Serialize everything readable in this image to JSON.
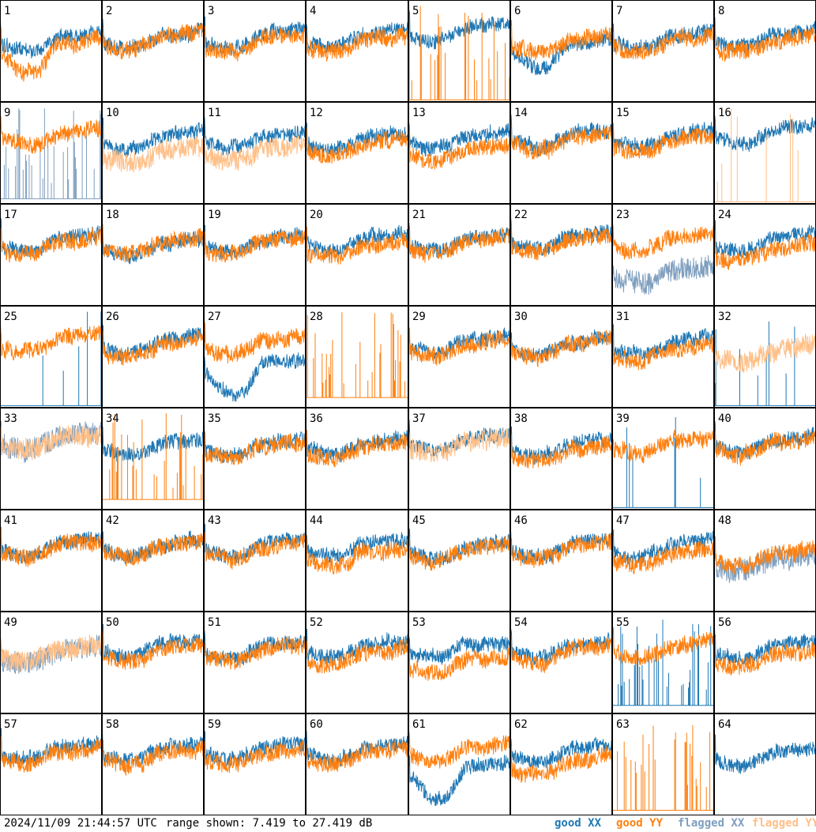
{
  "chart_data": {
    "type": "line",
    "layout": "8x8 small multiples",
    "panel_count": 64,
    "panel_labels": [
      "1",
      "2",
      "3",
      "4",
      "5",
      "6",
      "7",
      "8",
      "9",
      "10",
      "11",
      "12",
      "13",
      "14",
      "15",
      "16",
      "17",
      "18",
      "19",
      "20",
      "21",
      "22",
      "23",
      "24",
      "25",
      "26",
      "27",
      "28",
      "29",
      "30",
      "31",
      "32",
      "33",
      "34",
      "35",
      "36",
      "37",
      "38",
      "39",
      "40",
      "41",
      "42",
      "43",
      "44",
      "45",
      "46",
      "47",
      "48",
      "49",
      "50",
      "51",
      "52",
      "53",
      "54",
      "55",
      "56",
      "57",
      "58",
      "59",
      "60",
      "61",
      "62",
      "63",
      "64"
    ],
    "ylim": [
      7.419,
      27.419
    ],
    "yunit": "dB",
    "series": [
      {
        "name": "good XX",
        "color": "#1f77b4"
      },
      {
        "name": "good YY",
        "color": "#ff7f0e"
      },
      {
        "name": "flagged XX",
        "color": "#7f9fbf"
      },
      {
        "name": "flagged YY",
        "color": "#ffbf87"
      }
    ],
    "panels": [
      {
        "id": 1,
        "xx": "good",
        "yy": "good",
        "xx_level": 0.62,
        "yy_level": 0.55,
        "yy_dip": 0.75
      },
      {
        "id": 2,
        "xx": "good",
        "yy": "good",
        "xx_level": 0.65,
        "yy_level": 0.62
      },
      {
        "id": 3,
        "xx": "good",
        "yy": "good",
        "xx_level": 0.65,
        "yy_level": 0.6
      },
      {
        "id": 4,
        "xx": "good",
        "yy": "good",
        "xx_level": 0.66,
        "yy_level": 0.6
      },
      {
        "id": 5,
        "xx": "good",
        "yy": "spiky",
        "xx_level": 0.72,
        "yy_level": 0.02
      },
      {
        "id": 6,
        "xx": "good",
        "yy": "good",
        "xx_level": 0.55,
        "yy_level": 0.6,
        "xx_dip": 0.6
      },
      {
        "id": 7,
        "xx": "good",
        "yy": "good",
        "xx_level": 0.64,
        "yy_level": 0.6
      },
      {
        "id": 8,
        "xx": "good",
        "yy": "good",
        "xx_level": 0.65,
        "yy_level": 0.6
      },
      {
        "id": 9,
        "xx": "flagged-spiky",
        "yy": "good",
        "xx_level": 0.05,
        "yy_level": 0.7
      },
      {
        "id": 10,
        "xx": "good",
        "yy": "flagged",
        "xx_level": 0.66,
        "yy_level": 0.5
      },
      {
        "id": 11,
        "xx": "good",
        "yy": "flagged",
        "xx_level": 0.66,
        "yy_level": 0.52
      },
      {
        "id": 12,
        "xx": "good",
        "yy": "good",
        "xx_level": 0.64,
        "yy_level": 0.58
      },
      {
        "id": 13,
        "xx": "good",
        "yy": "good",
        "xx_level": 0.66,
        "yy_level": 0.52
      },
      {
        "id": 14,
        "xx": "good",
        "yy": "good",
        "xx_level": 0.68,
        "yy_level": 0.64
      },
      {
        "id": 15,
        "xx": "good",
        "yy": "good",
        "xx_level": 0.68,
        "yy_level": 0.62
      },
      {
        "id": 16,
        "xx": "good",
        "yy": "flagged-spiky",
        "xx_level": 0.72,
        "yy_level": 0.02
      },
      {
        "id": 17,
        "xx": "good",
        "yy": "good",
        "xx_level": 0.66,
        "yy_level": 0.62
      },
      {
        "id": 18,
        "xx": "good",
        "yy": "good",
        "xx_level": 0.6,
        "yy_level": 0.62
      },
      {
        "id": 19,
        "xx": "good",
        "yy": "good",
        "xx_level": 0.64,
        "yy_level": 0.62
      },
      {
        "id": 20,
        "xx": "good",
        "yy": "good",
        "xx_level": 0.66,
        "yy_level": 0.58
      },
      {
        "id": 21,
        "xx": "good",
        "yy": "good",
        "xx_level": 0.66,
        "yy_level": 0.62
      },
      {
        "id": 22,
        "xx": "good",
        "yy": "good",
        "xx_level": 0.68,
        "yy_level": 0.64
      },
      {
        "id": 23,
        "xx": "flagged",
        "yy": "good",
        "xx_level": 0.3,
        "yy_level": 0.66
      },
      {
        "id": 24,
        "xx": "good",
        "yy": "good",
        "xx_level": 0.66,
        "yy_level": 0.55
      },
      {
        "id": 25,
        "xx": "sparse",
        "yy": "good",
        "xx_level": 0.02,
        "yy_level": 0.68
      },
      {
        "id": 26,
        "xx": "good",
        "yy": "good",
        "xx_level": 0.66,
        "yy_level": 0.62
      },
      {
        "id": 27,
        "xx": "good",
        "yy": "good",
        "xx_level": 0.4,
        "yy_level": 0.64,
        "xx_dip": 0.9
      },
      {
        "id": 28,
        "xx": "none",
        "yy": "spiky",
        "xx_level": 0,
        "yy_level": 0.1
      },
      {
        "id": 29,
        "xx": "good",
        "yy": "good",
        "xx_level": 0.66,
        "yy_level": 0.62
      },
      {
        "id": 30,
        "xx": "good",
        "yy": "good",
        "xx_level": 0.64,
        "yy_level": 0.62
      },
      {
        "id": 31,
        "xx": "good",
        "yy": "good",
        "xx_level": 0.64,
        "yy_level": 0.56
      },
      {
        "id": 32,
        "xx": "sparse",
        "yy": "flagged",
        "xx_level": 0.02,
        "yy_level": 0.55
      },
      {
        "id": 33,
        "xx": "flagged",
        "yy": "flagged",
        "xx_level": 0.72,
        "yy_level": 0.7
      },
      {
        "id": 34,
        "xx": "good",
        "yy": "spiky",
        "xx_level": 0.64,
        "yy_level": 0.1
      },
      {
        "id": 35,
        "xx": "good",
        "yy": "good",
        "xx_level": 0.64,
        "yy_level": 0.62
      },
      {
        "id": 36,
        "xx": "good",
        "yy": "good",
        "xx_level": 0.66,
        "yy_level": 0.62
      },
      {
        "id": 37,
        "xx": "good",
        "yy": "flagged",
        "xx_level": 0.7,
        "yy_level": 0.66
      },
      {
        "id": 38,
        "xx": "good",
        "yy": "good",
        "xx_level": 0.64,
        "yy_level": 0.58
      },
      {
        "id": 39,
        "xx": "sparse",
        "yy": "good",
        "xx_level": 0.02,
        "yy_level": 0.66
      },
      {
        "id": 40,
        "xx": "good",
        "yy": "good",
        "xx_level": 0.68,
        "yy_level": 0.66
      },
      {
        "id": 41,
        "xx": "good",
        "yy": "good",
        "xx_level": 0.66,
        "yy_level": 0.64
      },
      {
        "id": 42,
        "xx": "good",
        "yy": "good",
        "xx_level": 0.66,
        "yy_level": 0.64
      },
      {
        "id": 43,
        "xx": "good",
        "yy": "good",
        "xx_level": 0.66,
        "yy_level": 0.62
      },
      {
        "id": 44,
        "xx": "good",
        "yy": "good",
        "xx_level": 0.66,
        "yy_level": 0.56
      },
      {
        "id": 45,
        "xx": "good",
        "yy": "good",
        "xx_level": 0.64,
        "yy_level": 0.6
      },
      {
        "id": 46,
        "xx": "good",
        "yy": "good",
        "xx_level": 0.66,
        "yy_level": 0.62
      },
      {
        "id": 47,
        "xx": "good",
        "yy": "good",
        "xx_level": 0.66,
        "yy_level": 0.56
      },
      {
        "id": 48,
        "xx": "flagged",
        "yy": "good",
        "xx_level": 0.5,
        "yy_level": 0.55
      },
      {
        "id": 49,
        "xx": "flagged",
        "yy": "flagged",
        "xx_level": 0.6,
        "yy_level": 0.62
      },
      {
        "id": 50,
        "xx": "good",
        "yy": "good",
        "xx_level": 0.68,
        "yy_level": 0.62
      },
      {
        "id": 51,
        "xx": "good",
        "yy": "good",
        "xx_level": 0.66,
        "yy_level": 0.62
      },
      {
        "id": 52,
        "xx": "good",
        "yy": "good",
        "xx_level": 0.66,
        "yy_level": 0.58
      },
      {
        "id": 53,
        "xx": "good",
        "yy": "good",
        "xx_level": 0.66,
        "yy_level": 0.5
      },
      {
        "id": 54,
        "xx": "good",
        "yy": "good",
        "xx_level": 0.66,
        "yy_level": 0.62
      },
      {
        "id": 55,
        "xx": "spiky",
        "yy": "good",
        "xx_level": 0.08,
        "yy_level": 0.66
      },
      {
        "id": 56,
        "xx": "good",
        "yy": "good",
        "xx_level": 0.66,
        "yy_level": 0.56
      },
      {
        "id": 57,
        "xx": "good",
        "yy": "good",
        "xx_level": 0.66,
        "yy_level": 0.62
      },
      {
        "id": 58,
        "xx": "good",
        "yy": "good",
        "xx_level": 0.66,
        "yy_level": 0.6
      },
      {
        "id": 59,
        "xx": "good",
        "yy": "good",
        "xx_level": 0.66,
        "yy_level": 0.6
      },
      {
        "id": 60,
        "xx": "good",
        "yy": "good",
        "xx_level": 0.66,
        "yy_level": 0.62
      },
      {
        "id": 61,
        "xx": "good",
        "yy": "good",
        "xx_level": 0.45,
        "yy_level": 0.66,
        "xx_dip": 0.9
      },
      {
        "id": 62,
        "xx": "good",
        "yy": "good",
        "xx_level": 0.64,
        "yy_level": 0.5
      },
      {
        "id": 63,
        "xx": "none",
        "yy": "spiky",
        "xx_level": 0,
        "yy_level": 0.05
      },
      {
        "id": 64,
        "xx": "good",
        "yy": "none",
        "xx_level": 0.6,
        "yy_level": 0
      }
    ]
  },
  "footer": {
    "timestamp": "2024/11/09 21:44:57 UTC",
    "range_text": "range shown: 7.419 to 27.419 dB",
    "legend": [
      {
        "label": "good XX",
        "color": "#1f77b4"
      },
      {
        "label": "good YY",
        "color": "#ff7f0e"
      },
      {
        "label": "flagged XX",
        "color": "#7f9fbf"
      },
      {
        "label": "flagged YY",
        "color": "#ffbf87"
      }
    ]
  }
}
